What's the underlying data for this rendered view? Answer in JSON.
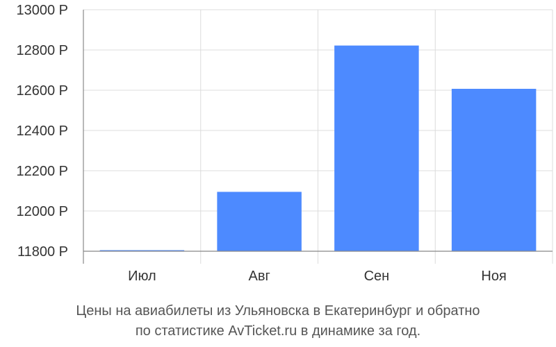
{
  "chart_data": {
    "type": "bar",
    "categories": [
      "Июл",
      "Авг",
      "Сен",
      "Ноя"
    ],
    "values": [
      11805,
      12095,
      12822,
      12607
    ],
    "ylim": [
      11800,
      13000
    ],
    "yticks": [
      11800,
      12000,
      12200,
      12400,
      12600,
      12800,
      13000
    ],
    "ytick_suffix": " Р",
    "grid": true,
    "bar_color": "#4d8aff",
    "caption_lines": [
      "Цены на авиабилеты из Ульяновска в Екатеринбург и обратно",
      "по статистике AvTicket.ru в динамике за год."
    ]
  }
}
